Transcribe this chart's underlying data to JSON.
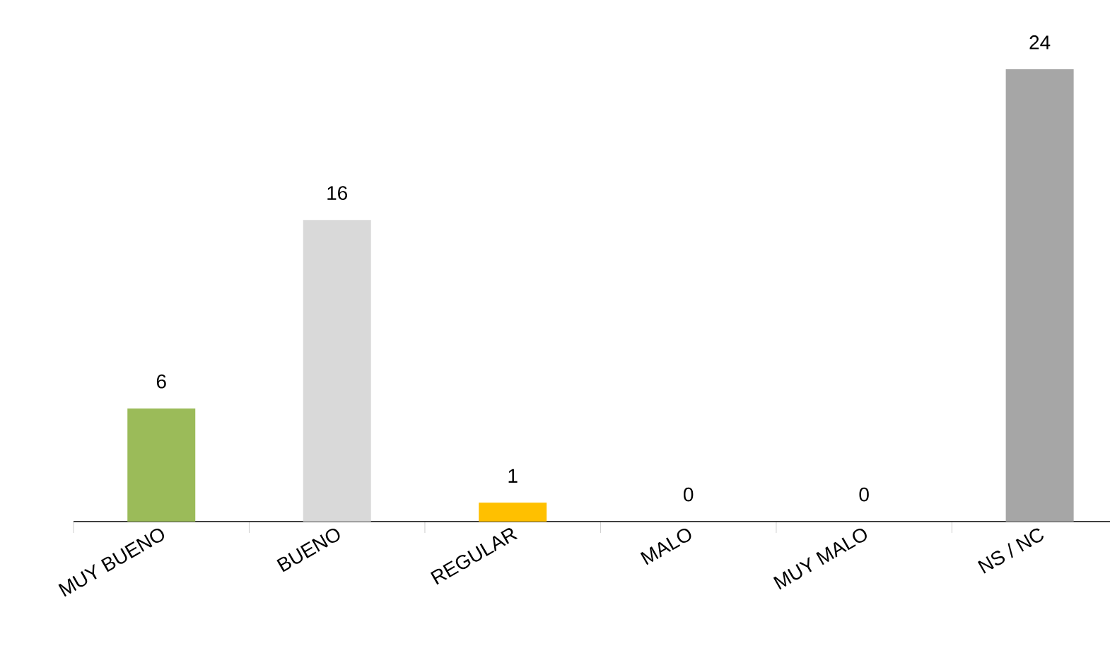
{
  "chart_data": {
    "type": "bar",
    "categories": [
      "MUY BUENO",
      "BUENO",
      "REGULAR",
      "MALO",
      "MUY MALO",
      "NS / NC"
    ],
    "values": [
      6,
      16,
      1,
      0,
      0,
      24
    ],
    "colors": [
      "#9bbb59",
      "#d9d9d9",
      "#ffc000",
      "#ed7d31",
      "#c0504d",
      "#a6a6a6"
    ],
    "data_labels": true
  }
}
